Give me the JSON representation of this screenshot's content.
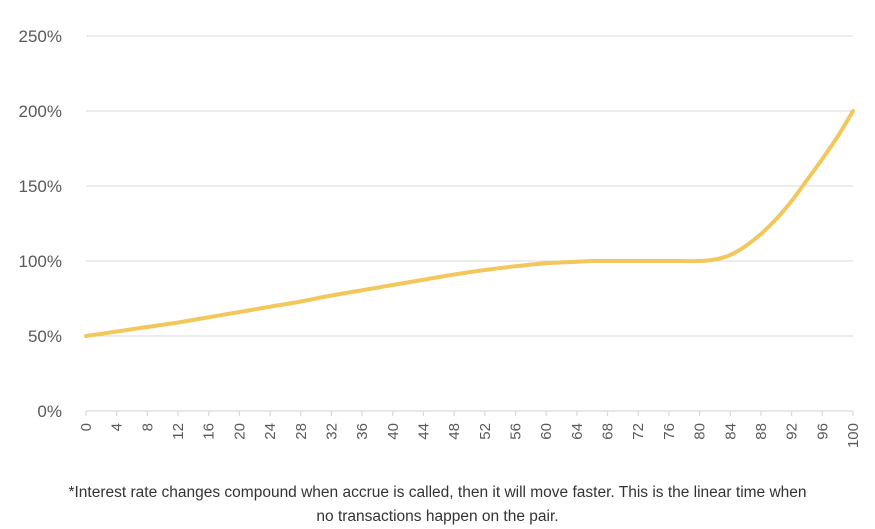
{
  "chart_data": {
    "type": "line",
    "title": "",
    "xlabel": "",
    "ylabel": "",
    "x_ticks": [
      0,
      4,
      8,
      12,
      16,
      20,
      24,
      28,
      32,
      36,
      40,
      44,
      48,
      52,
      56,
      60,
      64,
      68,
      72,
      76,
      80,
      84,
      88,
      92,
      96,
      100
    ],
    "y_ticks": [
      0,
      50,
      100,
      150,
      200,
      250
    ],
    "y_tick_labels": [
      "0%",
      "50%",
      "100%",
      "150%",
      "200%",
      "250%"
    ],
    "xlim": [
      0,
      100
    ],
    "ylim": [
      0,
      250
    ],
    "grid": true,
    "series": [
      {
        "name": "",
        "color": "#f2c75c",
        "x": [
          0,
          4,
          8,
          12,
          16,
          20,
          24,
          28,
          32,
          36,
          40,
          44,
          48,
          52,
          56,
          60,
          64,
          66,
          68,
          72,
          76,
          80,
          82,
          84,
          86,
          88,
          90,
          92,
          94,
          96,
          98,
          100
        ],
        "y": [
          50,
          53,
          56,
          59,
          62.5,
          66,
          69.5,
          73,
          77,
          80.5,
          84,
          87.5,
          91,
          94,
          96.5,
          98.5,
          99.5,
          100,
          100,
          100,
          100,
          100,
          101,
          104,
          110,
          118,
          128,
          140,
          154,
          168,
          183,
          200
        ]
      }
    ]
  },
  "footnote": {
    "line1": "*Interest rate changes compound when accrue is called, then it will move faster. This is the linear time when",
    "line2": "no transactions happen on the pair."
  }
}
